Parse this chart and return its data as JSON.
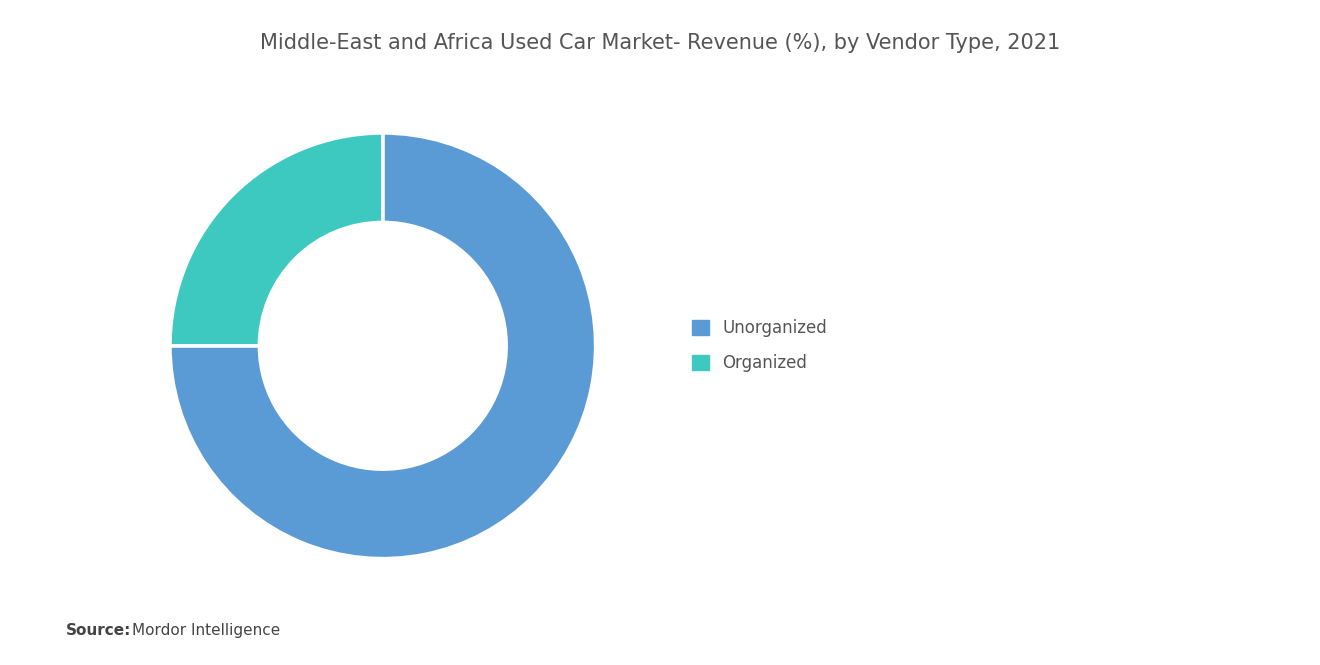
{
  "title": "Middle-East and Africa Used Car Market- Revenue (%), by Vendor Type, 2021",
  "slices": [
    {
      "label": "Unorganized",
      "value": 75,
      "color": "#5B9BD5"
    },
    {
      "label": "Organized",
      "value": 25,
      "color": "#3EC9C0"
    }
  ],
  "legend_labels": [
    "Unorganized",
    "Organized"
  ],
  "legend_colors": [
    "#5B9BD5",
    "#3EC9C0"
  ],
  "source_bold": "Source:",
  "source_text": "Mordor Intelligence",
  "background_color": "#FFFFFF",
  "title_fontsize": 15,
  "title_color": "#555555",
  "legend_fontsize": 12,
  "source_fontsize": 11,
  "start_angle": 90,
  "donut_width": 0.42
}
